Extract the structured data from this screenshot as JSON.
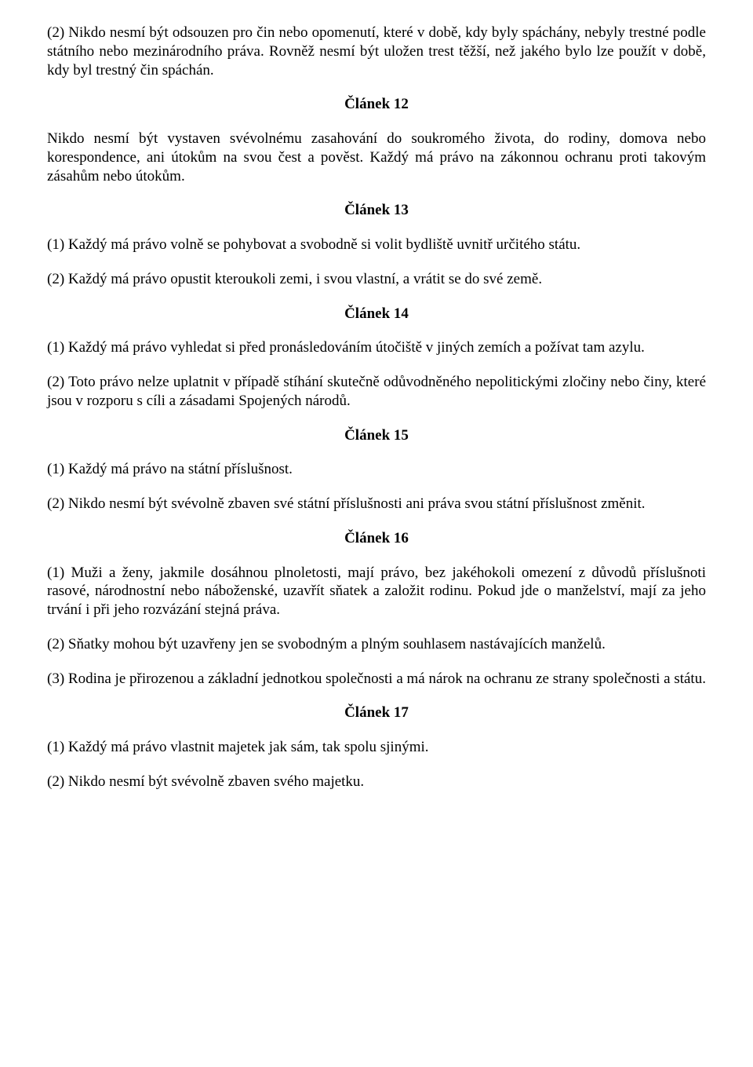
{
  "p1": "(2) Nikdo nesmí být odsouzen pro čin nebo opomenutí, které v době, kdy byly spáchány, nebyly trestné podle státního nebo mezinárodního práva. Rovněž nesmí být uložen trest těžší, než jakého bylo lze použít v době, kdy byl trestný čin spáchán.",
  "h12": "Článek 12",
  "p12": "Nikdo nesmí být vystaven svévolnému zasahování do soukromého života, do rodiny, domova nebo korespondence, ani útokům na svou čest a pověst. Každý má právo na zákonnou ochranu proti takovým zásahům nebo útokům.",
  "h13": "Článek 13",
  "p13a": "(1) Každý má právo volně se pohybovat a svobodně si volit bydliště uvnitř určitého státu.",
  "p13b": "(2) Každý má právo opustit kteroukoli zemi, i svou vlastní, a vrátit se do své země.",
  "h14": "Článek 14",
  "p14a": "(1) Každý má právo vyhledat si před pronásledováním útočiště v jiných zemích a požívat tam azylu.",
  "p14b": "(2) Toto právo nelze uplatnit v případě stíhání skutečně odůvodněného nepolitickými zločiny nebo činy, které jsou v rozporu s cíli a zásadami Spojených národů.",
  "h15": "Článek 15",
  "p15a": "(1) Každý má právo na státní příslušnost.",
  "p15b": "(2) Nikdo nesmí být svévolně zbaven své státní příslušnosti ani práva svou státní příslušnost změnit.",
  "h16": "Článek 16",
  "p16a": "(1) Muži a ženy, jakmile dosáhnou plnoletosti, mají právo, bez jakéhokoli omezení z důvodů příslušnoti rasové, národnostní nebo náboženské, uzavřít sňatek a založit rodinu. Pokud jde o manželství, mají za jeho trvání i při jeho rozvázání stejná práva.",
  "p16b": "(2) Sňatky mohou být uzavřeny jen se svobodným a plným souhlasem nastávajících manželů.",
  "p16c": "(3) Rodina je přirozenou a základní jednotkou společnosti a má nárok na ochranu ze strany společnosti a státu.",
  "h17": "Článek 17",
  "p17a": "(1) Každý má právo vlastnit majetek jak sám, tak spolu sjinými.",
  "p17b": "(2) Nikdo nesmí být svévolně zbaven svého majetku."
}
